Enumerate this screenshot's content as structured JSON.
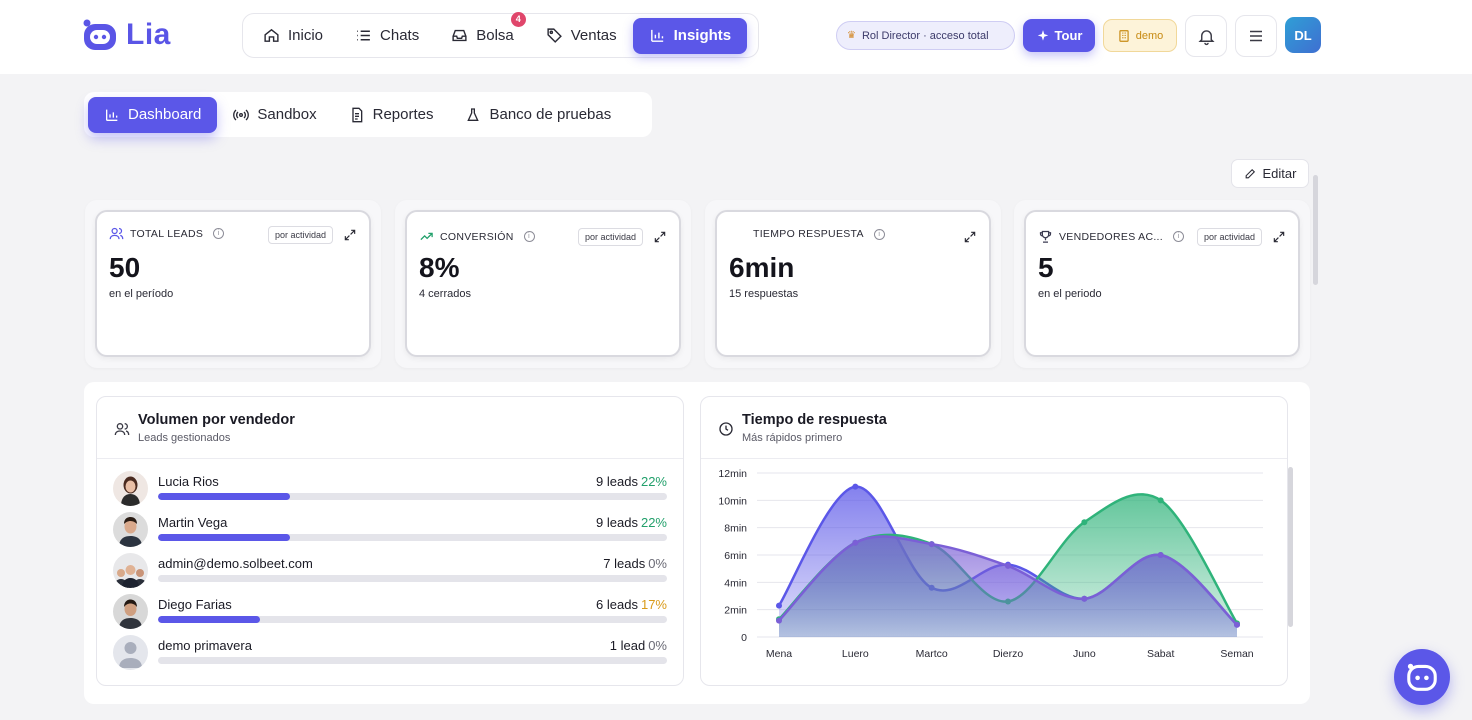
{
  "app": {
    "name": "Lia"
  },
  "nav": {
    "items": [
      {
        "label": "Inicio",
        "icon": "home-icon"
      },
      {
        "label": "Chats",
        "icon": "list-icon"
      },
      {
        "label": "Bolsa",
        "icon": "inbox-icon",
        "badge": "4"
      },
      {
        "label": "Ventas",
        "icon": "tag-icon"
      },
      {
        "label": "Insights",
        "icon": "bar-chart-icon",
        "active": true
      }
    ]
  },
  "header": {
    "role_label": "Rol Director · acceso total",
    "tour_label": "Tour",
    "demo_label": "demo",
    "avatar_initials": "DL"
  },
  "subtabs": [
    {
      "label": "Dashboard",
      "active": true
    },
    {
      "label": "Sandbox"
    },
    {
      "label": "Reportes"
    },
    {
      "label": "Banco de pruebas"
    }
  ],
  "edit_label": "Editar",
  "kpis": [
    {
      "title": "TOTAL LEADS",
      "tag": "por actividad",
      "value": "50",
      "sub": "en el período"
    },
    {
      "title": "CONVERSIÓN",
      "tag": "por actividad",
      "value": "8%",
      "sub": "4 cerrados"
    },
    {
      "title": "TIEMPO RESPUESTA",
      "tag": "",
      "value": "6min",
      "sub": "15 respuestas"
    },
    {
      "title": "VENDEDORES AC...",
      "tag": "por actividad",
      "value": "5",
      "sub": "en el periodo"
    }
  ],
  "volume_panel": {
    "title": "Volumen por vendedor",
    "subtitle": "Leads gestionados",
    "rows": [
      {
        "name": "Lucia Rios",
        "count": "9 leads",
        "pct": "22%",
        "pct_color": "#22a06b",
        "fill": 0.26
      },
      {
        "name": "Martin Vega",
        "count": "9 leads",
        "pct": "22%",
        "pct_color": "#22a06b",
        "fill": 0.26
      },
      {
        "name": "admin@demo.solbeet.com",
        "count": "7 leads",
        "pct": "0%",
        "pct_color": "#6a6a75",
        "fill": 0
      },
      {
        "name": "Diego Farias",
        "count": "6 leads",
        "pct": "17%",
        "pct_color": "#d99a1a",
        "fill": 0.2
      },
      {
        "name": "demo primavera",
        "count": "1 lead",
        "pct": "0%",
        "pct_color": "#6a6a75",
        "fill": 0
      }
    ]
  },
  "response_panel": {
    "title": "Tiempo de respuesta",
    "subtitle": "Más rápidos primero"
  },
  "chart_data": {
    "type": "area",
    "categories": [
      "Mena",
      "Luero",
      "Martco",
      "Dierzo",
      "Juno",
      "Sabat",
      "Seman"
    ],
    "y_ticks": [
      "0",
      "2min",
      "4min",
      "6min",
      "8min",
      "10min",
      "12min"
    ],
    "ylim": [
      0,
      12
    ],
    "series": [
      {
        "values": [
          2.3,
          11.0,
          3.6,
          5.3,
          2.8,
          6.0,
          0.9
        ],
        "color": "#5b57e8"
      },
      {
        "values": [
          1.3,
          6.9,
          6.8,
          2.6,
          8.4,
          10.0,
          1.0
        ],
        "color": "#2fb37a"
      },
      {
        "values": [
          1.2,
          6.9,
          6.8,
          5.2,
          2.8,
          6.0,
          0.9
        ],
        "color": "#7b5fd6"
      }
    ],
    "grid": true
  }
}
